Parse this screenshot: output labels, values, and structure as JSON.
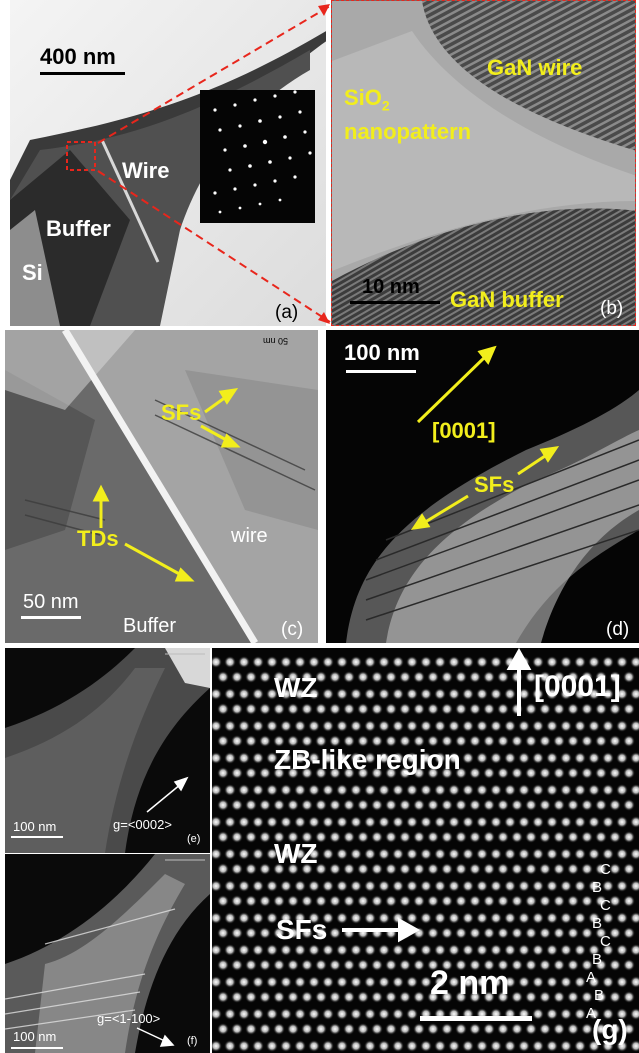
{
  "panels": {
    "a": {
      "label": "(a)",
      "scale_bar": "400 nm",
      "regions": [
        "Wire",
        "Buffer",
        "Si"
      ]
    },
    "b": {
      "label": "(b)",
      "scale_bar": "10 nm",
      "regions": {
        "wire": "GaN wire",
        "oxide_main": "SiO",
        "oxide_sub": "2",
        "oxide_line2": "nanopattern",
        "buffer": "GaN buffer"
      }
    },
    "c": {
      "label": "(c)",
      "scale_bar": "50 nm",
      "annotations": [
        "SFs",
        "TDs",
        "wire",
        "Buffer"
      ],
      "corner_text": "50 nm"
    },
    "d": {
      "label": "(d)",
      "scale_bar": "100 nm",
      "annotations": [
        "[0001]",
        "SFs"
      ]
    },
    "e": {
      "label": "(e)",
      "scale_bar": "100 nm",
      "g_vector": "g=<0002>"
    },
    "f": {
      "label": "(f)",
      "scale_bar": "100 nm",
      "g_vector": "g=<1-100>"
    },
    "g": {
      "label": "(g)",
      "scale_bar": "2 nm",
      "direction": "[0001]",
      "regions": [
        "WZ",
        "ZB-like region",
        "WZ",
        "SFs"
      ],
      "stacking": [
        "C",
        "B",
        "C",
        "B",
        "C",
        "B",
        "A",
        "B",
        "A"
      ]
    }
  },
  "colors": {
    "annotation": "#f2ee1c",
    "frame_dashed": "#e8261c"
  }
}
